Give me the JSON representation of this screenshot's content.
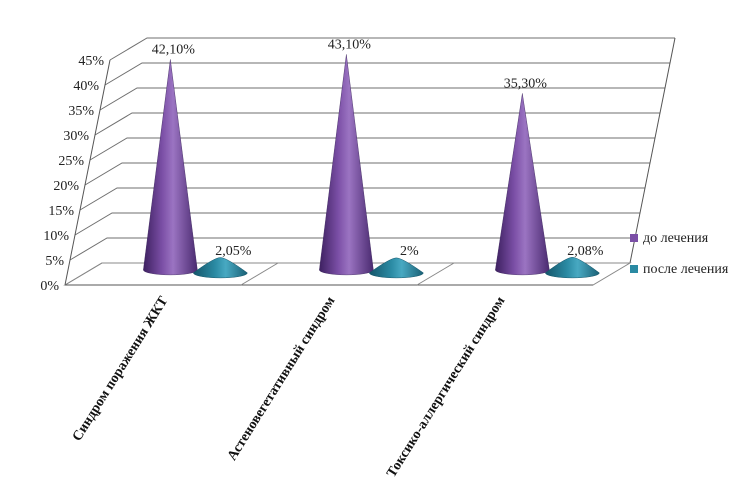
{
  "chart_data": {
    "type": "bar",
    "style": "3d-cone",
    "categories": [
      "Синдром поражения ЖКТ",
      "Астеновегетативный синдром",
      "Токсико-аллергический синдром"
    ],
    "series": [
      {
        "name": "до лечения",
        "values": [
          42.1,
          43.1,
          35.3
        ],
        "labels": [
          "42,10%",
          "43,10%",
          "35,30%"
        ],
        "color": "#7b4fa6"
      },
      {
        "name": "после лечения",
        "values": [
          2.05,
          2.0,
          2.08
        ],
        "labels": [
          "2,05%",
          "2%",
          "2,08%"
        ],
        "color": "#2a8aa3"
      }
    ],
    "yticks": [
      "0%",
      "5%",
      "10%",
      "15%",
      "20%",
      "25%",
      "30%",
      "35%",
      "40%",
      "45%"
    ],
    "ylim": [
      0,
      45
    ],
    "grid": true,
    "legend": "right"
  }
}
